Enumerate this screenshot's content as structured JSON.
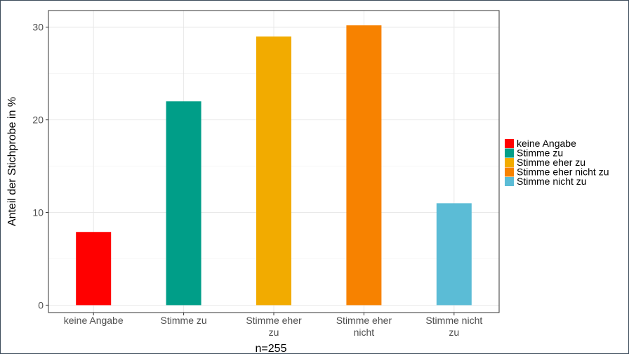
{
  "chart_data": {
    "type": "bar",
    "categories": [
      "keine Angabe",
      "Stimme zu",
      "Stimme eher zu",
      "Stimme eher nicht",
      "Stimme nicht zu"
    ],
    "category_tick_lines": [
      [
        "keine Angabe"
      ],
      [
        "Stimme zu"
      ],
      [
        "Stimme eher",
        "zu"
      ],
      [
        "Stimme eher",
        "nicht"
      ],
      [
        "Stimme nicht",
        "zu"
      ]
    ],
    "values": [
      7.9,
      22.0,
      29.0,
      30.2,
      11.0
    ],
    "colors": [
      "#ff0000",
      "#009e88",
      "#f2ab00",
      "#f78200",
      "#5bbcd6"
    ],
    "ylabel": "Anteil der Stichprobe in %",
    "xlabel": "n=255",
    "ylim": [
      -0.8,
      31.8
    ],
    "yticks": [
      0,
      10,
      20,
      30
    ],
    "grid": true,
    "legend": {
      "position": "right",
      "entries": [
        "keine Angabe",
        "Stimme zu",
        "Stimme eher zu",
        "Stimme eher nicht zu",
        "Stimme nicht zu"
      ],
      "colors": [
        "#ff0000",
        "#009e88",
        "#f2ab00",
        "#f78200",
        "#5bbcd6"
      ]
    }
  }
}
